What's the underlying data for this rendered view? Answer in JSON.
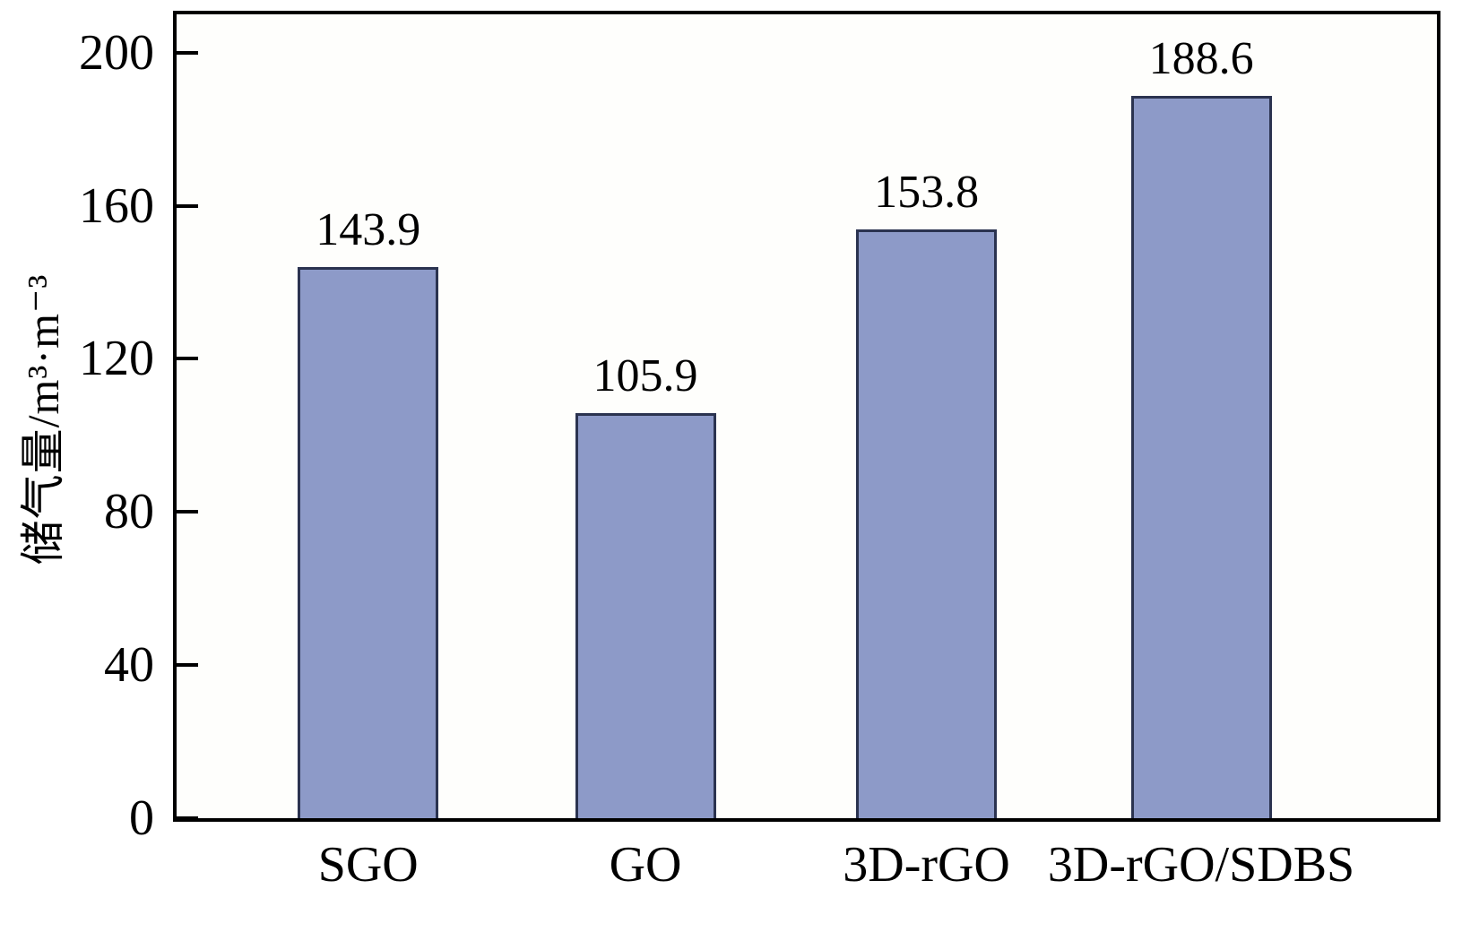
{
  "chart_data": {
    "type": "bar",
    "categories": [
      "SGO",
      "GO",
      "3D-rGO",
      "3D-rGO/SDBS"
    ],
    "values": [
      143.9,
      105.9,
      153.8,
      188.6
    ],
    "value_labels": [
      "143.9",
      "105.9",
      "153.8",
      "188.6"
    ],
    "title": "",
    "xlabel": "",
    "ylabel": "储气量/m³·m⁻³",
    "ylim": [
      0,
      200
    ],
    "yticks": [
      0,
      40,
      80,
      120,
      160,
      200
    ],
    "grid": false,
    "legend": "none",
    "colors": {
      "bar_fill": "#8d9ac8",
      "bar_border": "#2b3350",
      "axis": "#000000",
      "text": "#000000",
      "background": "#ffffff"
    }
  }
}
